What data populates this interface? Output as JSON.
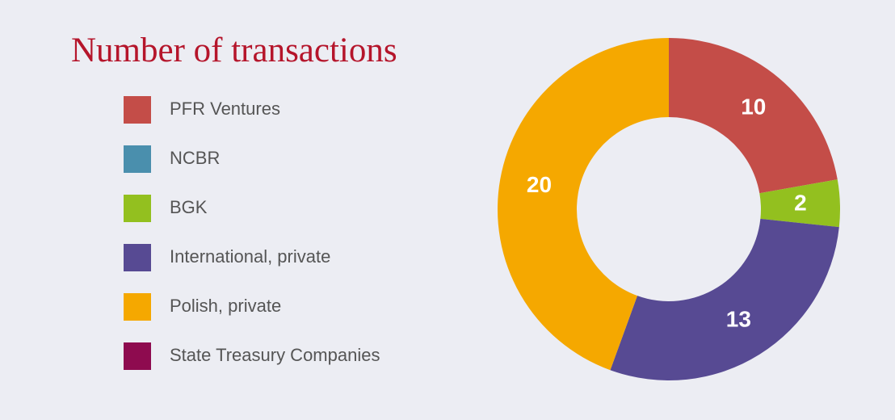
{
  "chart_data": {
    "type": "donut",
    "title": "Number of transactions",
    "categories": [
      "PFR Ventures",
      "NCBR",
      "BGK",
      "International, private",
      "Polish, private",
      "State Treasury Companies"
    ],
    "values": [
      10,
      0,
      2,
      13,
      20,
      0
    ],
    "colors": [
      "#c44d48",
      "#4a8fad",
      "#93c01f",
      "#574a93",
      "#f5a800",
      "#8e0b4f"
    ],
    "legend": "left"
  }
}
